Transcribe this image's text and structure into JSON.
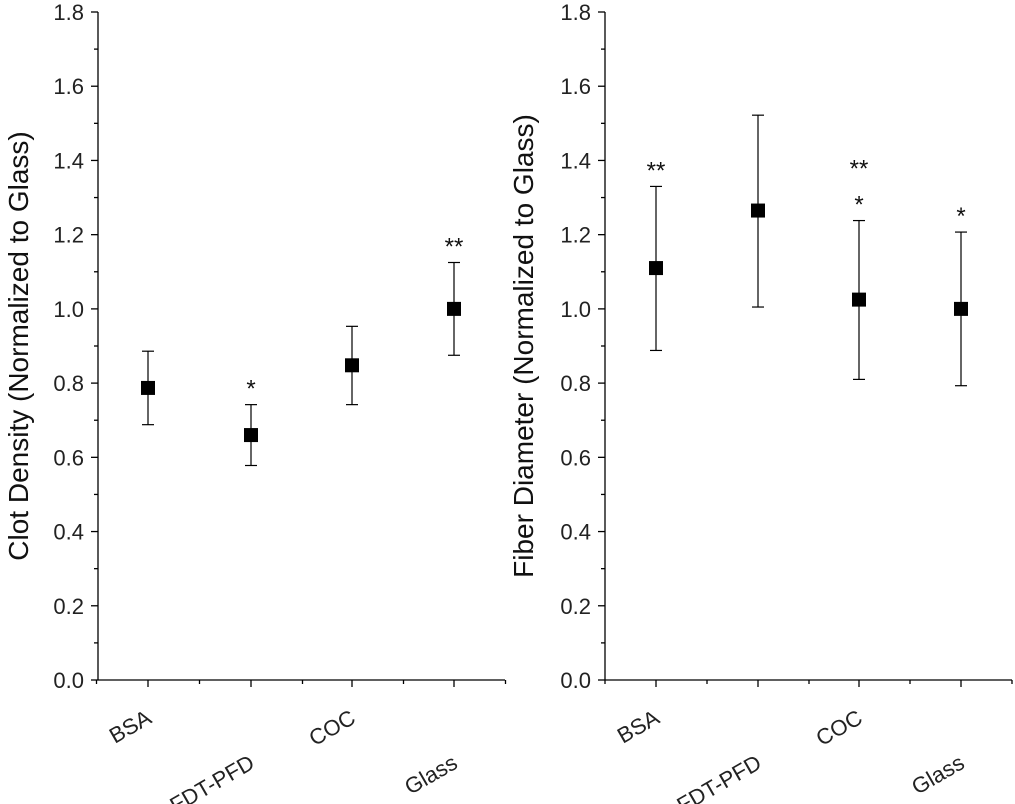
{
  "chart_data": [
    {
      "type": "scatter",
      "title": "",
      "xlabel": "",
      "ylabel": "Clot Density (Normalized to Glass)",
      "ylim": [
        0,
        1.8
      ],
      "yticks": [
        "0.0",
        "0.2",
        "0.4",
        "0.6",
        "0.8",
        "1.0",
        "1.2",
        "1.4",
        "1.6",
        "1.8"
      ],
      "categories": [
        "BSA",
        "PDA-FDT-PFD",
        "COC",
        "Glass"
      ],
      "series": [
        {
          "name": "Clot Density",
          "values": [
            0.787,
            0.66,
            0.848,
            1.0
          ],
          "error_low": [
            0.688,
            0.578,
            0.742,
            0.875
          ],
          "error_high": [
            0.886,
            0.742,
            0.953,
            1.125
          ]
        }
      ],
      "annotations": [
        "",
        "*",
        "",
        "**"
      ]
    },
    {
      "type": "scatter",
      "title": "",
      "xlabel": "",
      "ylabel": "Fiber Diameter (Normalized to Glass)",
      "ylim": [
        0,
        1.8
      ],
      "yticks": [
        "0.0",
        "0.2",
        "0.4",
        "0.6",
        "0.8",
        "1.0",
        "1.2",
        "1.4",
        "1.6",
        "1.8"
      ],
      "categories": [
        "BSA",
        "PDA-FDT-PFD",
        "COC",
        "Glass"
      ],
      "series": [
        {
          "name": "Fiber Diameter",
          "values": [
            1.11,
            1.265,
            1.025,
            1.0
          ],
          "error_low": [
            0.888,
            1.005,
            0.81,
            0.793
          ],
          "error_high": [
            1.33,
            1.522,
            1.238,
            1.207
          ]
        }
      ],
      "annotations": [
        "**",
        "",
        "**\n*",
        "*"
      ]
    }
  ]
}
